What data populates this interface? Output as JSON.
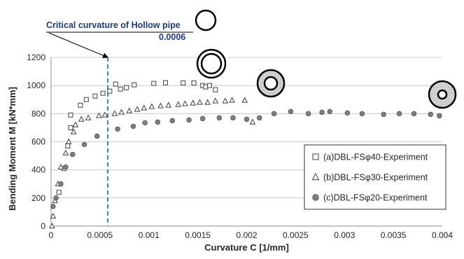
{
  "chart_data": {
    "type": "scatter",
    "xlabel": "Curvature C [1/mm]",
    "ylabel": "Bending Moment M [kN*mm]",
    "xlim": [
      0,
      0.004
    ],
    "ylim": [
      0,
      1200
    ],
    "x_ticks": [
      0,
      0.0005,
      0.001,
      0.0015,
      0.002,
      0.0025,
      0.003,
      0.0035,
      0.004
    ],
    "x_tick_labels": [
      "0",
      "0.0005",
      "0.001",
      "0.0015",
      "0.002",
      "0.0025",
      "0.003",
      "0.0035",
      "0.004"
    ],
    "y_ticks": [
      0,
      200,
      400,
      600,
      800,
      1000,
      1200
    ],
    "y_tick_labels": [
      "0",
      "200",
      "400",
      "600",
      "800",
      "1000",
      "1200"
    ],
    "grid": "horizontal",
    "legend_position": "bottom-right",
    "series": [
      {
        "name": "(a)DBL-FSφ40-Experiment",
        "marker": "square-open",
        "color": "#555555",
        "points": [
          [
            8e-05,
            240
          ],
          [
            0.00013,
            410
          ],
          [
            0.00017,
            570
          ],
          [
            0.0002,
            700
          ],
          [
            0.0002,
            790
          ],
          [
            0.0003,
            860
          ],
          [
            0.00036,
            900
          ],
          [
            0.00045,
            925
          ],
          [
            0.00053,
            945
          ],
          [
            0.0006,
            960
          ],
          [
            0.00066,
            1010
          ],
          [
            0.00071,
            975
          ],
          [
            0.00077,
            985
          ],
          [
            0.00085,
            1005
          ],
          [
            0.00105,
            1015
          ],
          [
            0.00117,
            1020
          ],
          [
            0.00135,
            1018
          ],
          [
            0.00146,
            1018
          ],
          [
            0.00155,
            1000
          ],
          [
            0.00158,
            990
          ],
          [
            0.00162,
            1000
          ],
          [
            0.00168,
            970
          ]
        ]
      },
      {
        "name": "(b)DBL-FSφ30-Experiment",
        "marker": "triangle-open",
        "color": "#555555",
        "points": [
          [
            1e-05,
            0
          ],
          [
            2e-05,
            70
          ],
          [
            4e-05,
            180
          ],
          [
            7e-05,
            300
          ],
          [
            0.0001,
            420
          ],
          [
            0.00015,
            520
          ],
          [
            0.00018,
            600
          ],
          [
            0.00023,
            670
          ],
          [
            0.00025,
            720
          ],
          [
            0.00031,
            760
          ],
          [
            0.00038,
            770
          ],
          [
            0.00049,
            785
          ],
          [
            0.00055,
            790
          ],
          [
            0.00065,
            800
          ],
          [
            0.00072,
            810
          ],
          [
            0.0008,
            820
          ],
          [
            0.00088,
            830
          ],
          [
            0.00095,
            840
          ],
          [
            0.00103,
            850
          ],
          [
            0.00112,
            855
          ],
          [
            0.0012,
            860
          ],
          [
            0.0013,
            865
          ],
          [
            0.00137,
            870
          ],
          [
            0.00145,
            875
          ],
          [
            0.00152,
            880
          ],
          [
            0.0016,
            880
          ],
          [
            0.00168,
            890
          ],
          [
            0.00178,
            890
          ],
          [
            0.00185,
            895
          ],
          [
            0.00198,
            895
          ],
          [
            0.00206,
            740
          ]
        ]
      },
      {
        "name": "(c)DBL-FSφ20-Experiment",
        "marker": "circle-filled",
        "color": "#7f7f7f",
        "points": [
          [
            2e-05,
            140
          ],
          [
            5e-05,
            200
          ],
          [
            0.0001,
            300
          ],
          [
            0.00015,
            420
          ],
          [
            0.00022,
            510
          ],
          [
            0.00034,
            580
          ],
          [
            0.00047,
            640
          ],
          [
            0.00068,
            690
          ],
          [
            0.00084,
            710
          ],
          [
            0.00096,
            735
          ],
          [
            0.00109,
            740
          ],
          [
            0.00124,
            750
          ],
          [
            0.00141,
            755
          ],
          [
            0.00155,
            765
          ],
          [
            0.00172,
            770
          ],
          [
            0.00186,
            770
          ],
          [
            0.002,
            760
          ],
          [
            0.00213,
            770
          ],
          [
            0.00228,
            800
          ],
          [
            0.00245,
            815
          ],
          [
            0.00263,
            800
          ],
          [
            0.00277,
            810
          ],
          [
            0.00285,
            815
          ],
          [
            0.00303,
            805
          ],
          [
            0.00318,
            800
          ],
          [
            0.0034,
            795
          ],
          [
            0.00356,
            800
          ],
          [
            0.00371,
            800
          ],
          [
            0.00388,
            795
          ],
          [
            0.00397,
            785
          ]
        ]
      }
    ],
    "annotation": {
      "label": "Critical curvature of Hollow pipe",
      "value_label": "0.0006",
      "x": 0.00058
    },
    "section_icons": [
      {
        "name": "hollow-pipe-icon",
        "type": "hollow"
      },
      {
        "name": "fs40-section-icon",
        "type": "double-ring"
      },
      {
        "name": "fs30-section-icon",
        "type": "filled-ring"
      },
      {
        "name": "fs20-section-icon",
        "type": "filled-ring-thick"
      }
    ]
  }
}
